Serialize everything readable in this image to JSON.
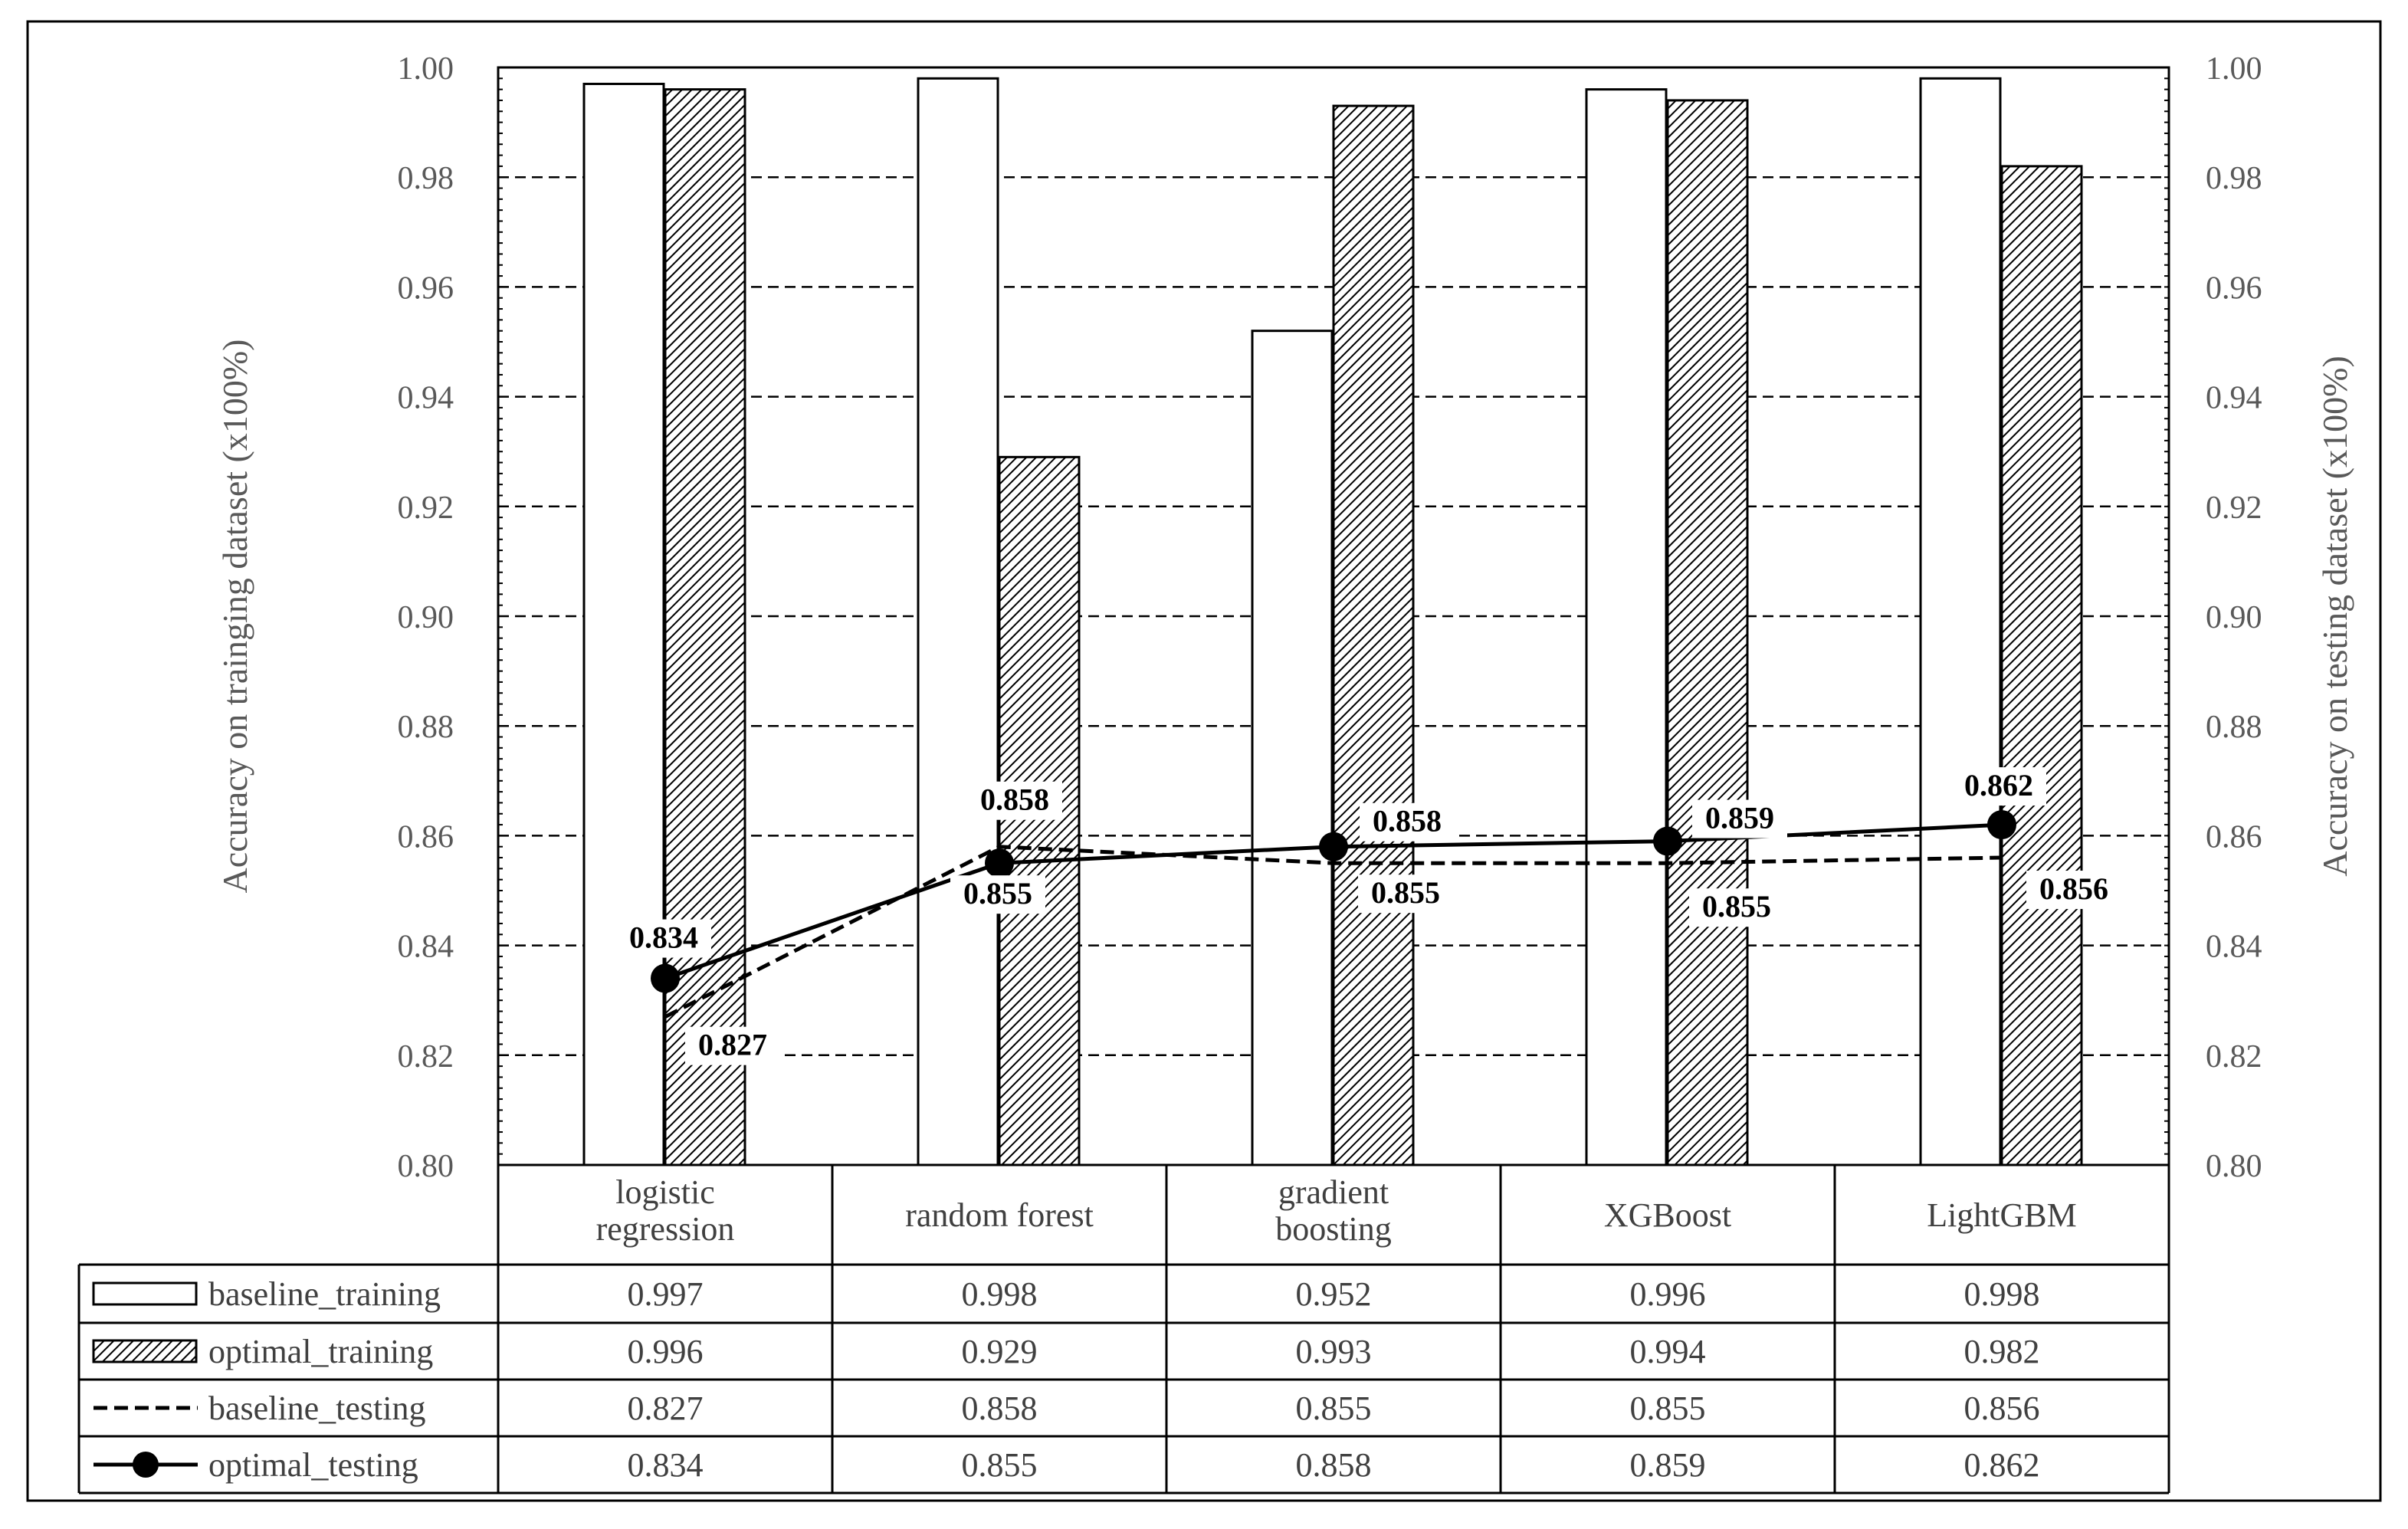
{
  "chart_data": {
    "type": "bar",
    "categories": [
      "logistic regression",
      "random forest",
      "gradient boosting",
      "XGBoost",
      "LightGBM"
    ],
    "category_lines": [
      [
        "logistic",
        "regression"
      ],
      [
        "random forest"
      ],
      [
        "gradient",
        "boosting"
      ],
      [
        "XGBoost"
      ],
      [
        "LightGBM"
      ]
    ],
    "series": [
      {
        "name": "baseline_training",
        "kind": "bar",
        "fill": "plain",
        "axis": "left",
        "values": [
          0.997,
          0.998,
          0.952,
          0.996,
          0.998
        ]
      },
      {
        "name": "optimal_training",
        "kind": "bar",
        "fill": "hatched",
        "axis": "left",
        "values": [
          0.996,
          0.929,
          0.993,
          0.994,
          0.982
        ]
      },
      {
        "name": "baseline_testing",
        "kind": "line",
        "style": "dashed",
        "axis": "right",
        "values": [
          0.827,
          0.858,
          0.855,
          0.855,
          0.856
        ]
      },
      {
        "name": "optimal_testing",
        "kind": "line",
        "style": "solid-markers",
        "axis": "right",
        "values": [
          0.834,
          0.855,
          0.858,
          0.859,
          0.862
        ]
      }
    ],
    "baseline_testing_labels": [
      "0.827",
      "0.858",
      "0.855",
      "0.855",
      "0.856"
    ],
    "optimal_testing_labels": [
      "0.834",
      "0.855",
      "0.858",
      "0.859",
      "0.862"
    ],
    "table_values": [
      [
        "0.997",
        "0.998",
        "0.952",
        "0.996",
        "0.998"
      ],
      [
        "0.996",
        "0.929",
        "0.993",
        "0.994",
        "0.982"
      ],
      [
        "0.827",
        "0.858",
        "0.855",
        "0.855",
        "0.856"
      ],
      [
        "0.834",
        "0.855",
        "0.858",
        "0.859",
        "0.862"
      ]
    ],
    "ylabel_left": "Accuracy on trainging dataset (x100%)",
    "ylabel_right": "Accuracy on testing dataset  (x100%)",
    "ylim": [
      0.8,
      1.0
    ],
    "yticks": [
      "0.80",
      "0.82",
      "0.84",
      "0.86",
      "0.88",
      "0.90",
      "0.92",
      "0.94",
      "0.96",
      "0.98",
      "1.00"
    ],
    "grid": true,
    "legend_placement": "data table below plot",
    "colors": {
      "ink": "#000000",
      "bar_fill": "#ffffff",
      "axis_text": "#595959",
      "table_text": "#404040"
    }
  }
}
